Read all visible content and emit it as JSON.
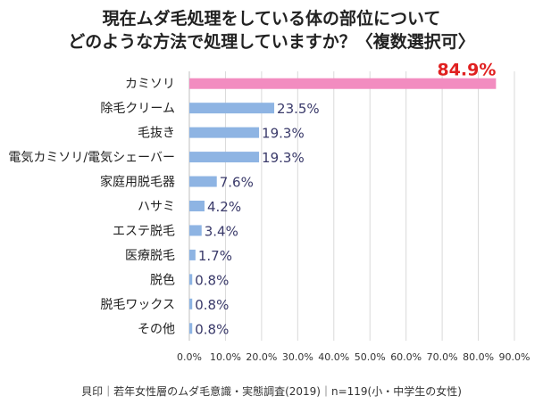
{
  "title_line1": "現在ムダ毛処理をしている体の部位について",
  "title_line2": "どのような方法で処理していますか？〈複数選択可〉",
  "footer": "貝印｜若年女性層のムダ毛意識・実態調査(2019)｜n=119(小・中学生の女性)",
  "chart_data": {
    "type": "bar",
    "orientation": "horizontal",
    "categories": [
      "カミソリ",
      "除毛クリーム",
      "毛抜き",
      "電気カミソリ/電気シェーバー",
      "家庭用脱毛器",
      "ハサミ",
      "エステ脱毛",
      "医療脱毛",
      "脱色",
      "脱毛ワックス",
      "その他"
    ],
    "values": [
      84.9,
      23.5,
      19.3,
      19.3,
      7.6,
      4.2,
      3.4,
      1.7,
      0.8,
      0.8,
      0.8
    ],
    "value_labels": [
      "84.9%",
      "23.5%",
      "19.3%",
      "19.3%",
      "7.6%",
      "4.2%",
      "3.4%",
      "1.7%",
      "0.8%",
      "0.8%",
      "0.8%"
    ],
    "xlim": [
      0,
      90
    ],
    "xticks": [
      "0.0%",
      "10.0%",
      "20.0%",
      "30.0%",
      "40.0%",
      "50.0%",
      "60.0%",
      "70.0%",
      "80.0%",
      "90.0%"
    ],
    "grid": true,
    "highlight_index": 0,
    "colors": {
      "bar": "#8eb4e3",
      "highlight_bar": "#f28cc0",
      "highlight_label": "#e02020",
      "label": "#3a3a6a",
      "grid": "#d9d9d9"
    }
  }
}
